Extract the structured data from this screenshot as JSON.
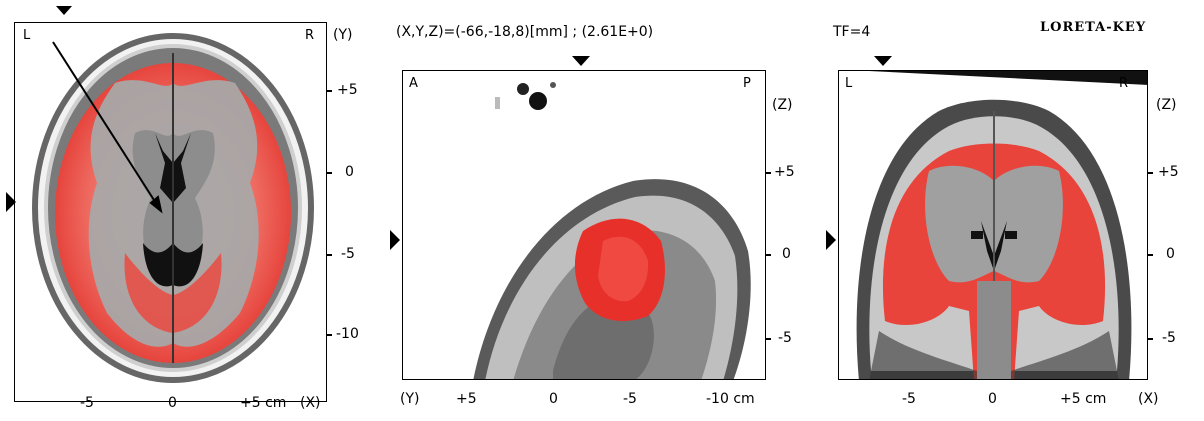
{
  "app_title": "LORETA-KEY",
  "coords_readout": "(X,Y,Z)=(-66,-18,8)[mm] ; (2.61E+0)",
  "timeframe": "TF=4",
  "axial": {
    "corner_left": "L",
    "corner_right": "R",
    "side_axis": "(Y)",
    "side_ticks": [
      "+5",
      "0",
      "-5",
      "-10"
    ],
    "bottom_ticks": [
      "-5",
      "0",
      "+5 cm"
    ],
    "bottom_axis": "(X)"
  },
  "sagittal": {
    "corner_left": "A",
    "corner_right": "P",
    "side_axis": "(Z)",
    "side_ticks": [
      "+5",
      "0",
      "-5"
    ],
    "bottom_axis": "(Y)",
    "bottom_ticks": [
      "+5",
      "0",
      "-5",
      "-10 cm"
    ]
  },
  "coronal": {
    "corner_left": "L",
    "corner_right": "R",
    "side_axis": "(Z)",
    "side_ticks": [
      "+5",
      "0",
      "-5"
    ],
    "bottom_ticks": [
      "-5",
      "0",
      "+5 cm"
    ],
    "bottom_axis": "(X)"
  },
  "colors": {
    "activation": "#e83a32",
    "tissue": "#a6a6a6",
    "background": "#ffffff"
  }
}
